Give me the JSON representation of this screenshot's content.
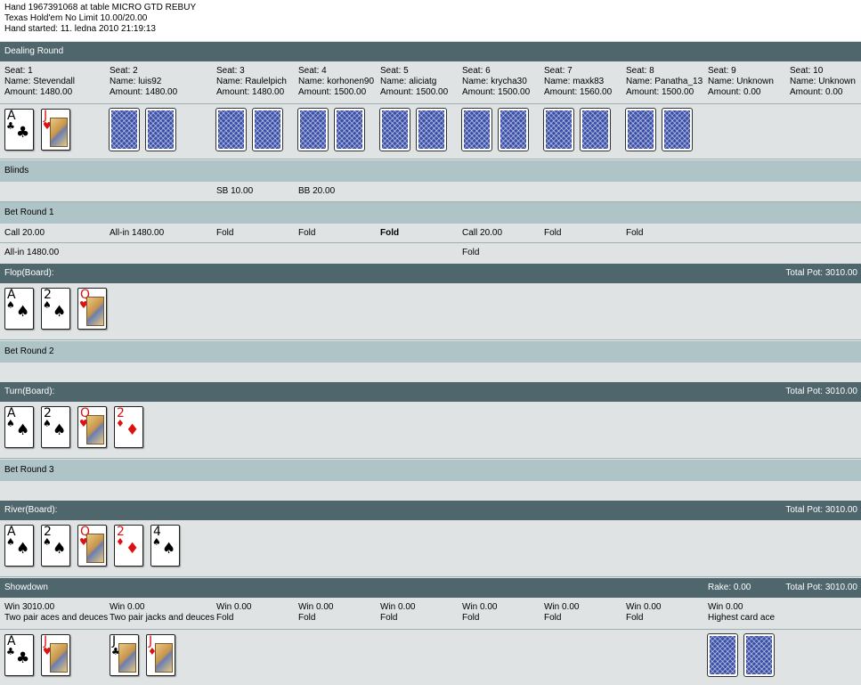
{
  "header": {
    "line1": "Hand 1967391068 at table MICRO GTD REBUY",
    "line2": "Texas Hold'em No Limit 10.00/20.00",
    "line3": "Hand started: 11. ledna 2010 21:19:13"
  },
  "sections": {
    "dealing": "Dealing Round",
    "blinds": "Blinds",
    "bet1": "Bet Round 1",
    "flop": "Flop(Board):",
    "bet2": "Bet Round 2",
    "turn": "Turn(Board):",
    "bet3": "Bet Round 3",
    "river": "River(Board):",
    "showdown": "Showdown"
  },
  "pots": {
    "flop": "Total Pot: 3010.00",
    "turn": "Total Pot: 3010.00",
    "river": "Total Pot: 3010.00",
    "showdown": "Total Pot: 3010.00",
    "rake": "Rake: 0.00"
  },
  "seats": [
    {
      "seat": "Seat: 1",
      "name": "Name: Stevendall",
      "amount": "Amount: 1480.00"
    },
    {
      "seat": "Seat: 2",
      "name": "Name: luis92",
      "amount": "Amount: 1480.00"
    },
    {
      "seat": "Seat: 3",
      "name": "Name: Raulelpich",
      "amount": "Amount: 1480.00"
    },
    {
      "seat": "Seat: 4",
      "name": "Name: korhonen90",
      "amount": "Amount: 1500.00"
    },
    {
      "seat": "Seat: 5",
      "name": "Name: aliciatg",
      "amount": "Amount: 1500.00"
    },
    {
      "seat": "Seat: 6",
      "name": "Name: krycha30",
      "amount": "Amount: 1500.00"
    },
    {
      "seat": "Seat: 7",
      "name": "Name: maxk83",
      "amount": "Amount: 1560.00"
    },
    {
      "seat": "Seat: 8",
      "name": "Name: Panatha_13",
      "amount": "Amount: 1500.00"
    },
    {
      "seat": "Seat: 9",
      "name": "Name: Unknown",
      "amount": "Amount: 0.00"
    },
    {
      "seat": "Seat: 10",
      "name": "Name: Unknown",
      "amount": "Amount: 0.00"
    }
  ],
  "hero_cards": [
    {
      "rank": "A",
      "suit": "♣",
      "color": "black"
    },
    {
      "rank": "J",
      "suit": "♥",
      "color": "red",
      "face": true
    }
  ],
  "blinds": {
    "sb": "SB 10.00",
    "bb": "BB 20.00"
  },
  "bet1_row1": [
    "Call 20.00",
    "All-in 1480.00",
    "Fold",
    "Fold",
    "Fold",
    "Call 20.00",
    "Fold",
    "Fold"
  ],
  "bet1_row2": {
    "seat1": "All-in 1480.00",
    "seat6": "Fold"
  },
  "board": [
    {
      "rank": "A",
      "suit": "♠",
      "color": "black"
    },
    {
      "rank": "2",
      "suit": "♠",
      "color": "black"
    },
    {
      "rank": "Q",
      "suit": "♥",
      "color": "red",
      "face": true
    },
    {
      "rank": "2",
      "suit": "♦",
      "color": "red"
    },
    {
      "rank": "4",
      "suit": "♠",
      "color": "black"
    }
  ],
  "showdown": [
    {
      "win": "Win 3010.00",
      "hand": "Two pair aces and deuces"
    },
    {
      "win": "Win 0.00",
      "hand": "Two pair jacks and deuces"
    },
    {
      "win": "Win 0.00",
      "hand": "Fold"
    },
    {
      "win": "Win 0.00",
      "hand": "Fold"
    },
    {
      "win": "Win 0.00",
      "hand": "Fold"
    },
    {
      "win": "Win 0.00",
      "hand": "Fold"
    },
    {
      "win": "Win 0.00",
      "hand": "Fold"
    },
    {
      "win": "Win 0.00",
      "hand": "Fold"
    },
    {
      "win": "Win 0.00",
      "hand": "Highest card ace"
    }
  ],
  "showdown_cards": {
    "seat1": [
      {
        "rank": "A",
        "suit": "♣",
        "color": "black"
      },
      {
        "rank": "J",
        "suit": "♥",
        "color": "red",
        "face": true
      }
    ],
    "seat2": [
      {
        "rank": "J",
        "suit": "♣",
        "color": "black",
        "face": true
      },
      {
        "rank": "J",
        "suit": "♦",
        "color": "red",
        "face": true
      }
    ]
  },
  "colors": {
    "band": "#4f666d",
    "sub": "#afc4c6",
    "bg": "#dfe3e3"
  }
}
